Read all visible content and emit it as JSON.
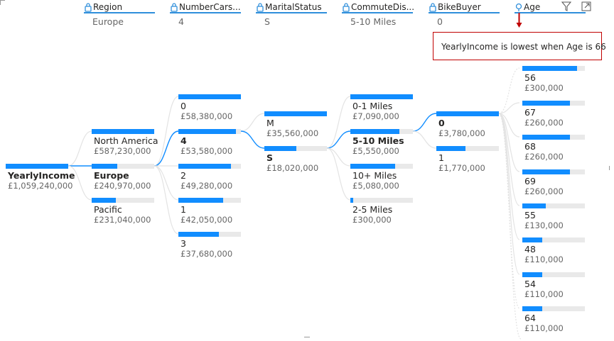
{
  "headers": [
    {
      "title": "Region",
      "value": "Europe",
      "icon": "lock-icon"
    },
    {
      "title": "NumberCars...",
      "value": "4",
      "icon": "lock-icon"
    },
    {
      "title": "MaritalStatus",
      "value": "S",
      "icon": "lock-icon"
    },
    {
      "title": "CommuteDis...",
      "value": "5-10 Miles",
      "icon": "lock-icon"
    },
    {
      "title": "BikeBuyer",
      "value": "0",
      "icon": "lock-icon"
    },
    {
      "title": "Age",
      "value": "",
      "icon": "lightbulb-icon"
    }
  ],
  "root": {
    "label": "YearlyIncome",
    "value": "£1,059,240,000"
  },
  "region": [
    {
      "label": "North America",
      "value": "£587,230,000",
      "fraction": 1.0
    },
    {
      "label": "Europe",
      "value": "£240,970,000",
      "fraction": 0.41,
      "selected": true
    },
    {
      "label": "Pacific",
      "value": "£231,040,000",
      "fraction": 0.39
    }
  ],
  "cars": [
    {
      "label": "0",
      "value": "£58,380,000",
      "fraction": 1.0
    },
    {
      "label": "4",
      "value": "£53,580,000",
      "fraction": 0.92,
      "selected": true
    },
    {
      "label": "2",
      "value": "£49,280,000",
      "fraction": 0.84
    },
    {
      "label": "1",
      "value": "£42,050,000",
      "fraction": 0.72
    },
    {
      "label": "3",
      "value": "£37,680,000",
      "fraction": 0.65
    }
  ],
  "marital": [
    {
      "label": "M",
      "value": "£35,560,000",
      "fraction": 1.0
    },
    {
      "label": "S",
      "value": "£18,020,000",
      "fraction": 0.51,
      "selected": true
    }
  ],
  "commute": [
    {
      "label": "0-1 Miles",
      "value": "£7,090,000",
      "fraction": 1.0
    },
    {
      "label": "5-10 Miles",
      "value": "£5,550,000",
      "fraction": 0.78,
      "selected": true
    },
    {
      "label": "10+ Miles",
      "value": "£5,080,000",
      "fraction": 0.72
    },
    {
      "label": "2-5 Miles",
      "value": "£300,000",
      "fraction": 0.04
    }
  ],
  "bikebuyer": [
    {
      "label": "0",
      "value": "£3,780,000",
      "fraction": 1.0,
      "selected": true
    },
    {
      "label": "1",
      "value": "£1,770,000",
      "fraction": 0.47
    }
  ],
  "age": [
    {
      "label": "56",
      "value": "£300,000",
      "fraction": 0.88
    },
    {
      "label": "67",
      "value": "£260,000",
      "fraction": 0.76
    },
    {
      "label": "68",
      "value": "£260,000",
      "fraction": 0.76
    },
    {
      "label": "69",
      "value": "£260,000",
      "fraction": 0.76
    },
    {
      "label": "55",
      "value": "£130,000",
      "fraction": 0.38
    },
    {
      "label": "48",
      "value": "£110,000",
      "fraction": 0.32
    },
    {
      "label": "54",
      "value": "£110,000",
      "fraction": 0.32
    },
    {
      "label": "64",
      "value": "£110,000",
      "fraction": 0.32
    }
  ],
  "tooltip": "YearlyIncome is lowest when Age is 66",
  "colors": {
    "accent": "#118dff",
    "track": "#e9e9e9",
    "callout_border": "#c00000",
    "header_rule": "#2f8fdb"
  }
}
